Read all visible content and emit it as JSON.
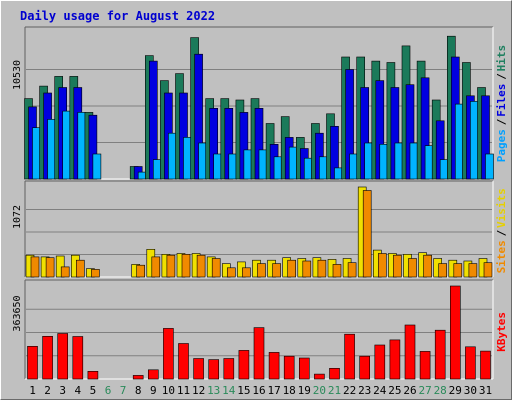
{
  "chart_data": {
    "type": "bar",
    "title": "Daily usage for August 2022",
    "categories": [
      "1",
      "2",
      "3",
      "4",
      "5",
      "6",
      "7",
      "8",
      "9",
      "10",
      "11",
      "12",
      "13",
      "14",
      "15",
      "16",
      "17",
      "18",
      "19",
      "20",
      "21",
      "22",
      "23",
      "24",
      "25",
      "26",
      "27",
      "28",
      "29",
      "30",
      "31"
    ],
    "weekend_days": [
      "6",
      "7",
      "13",
      "14",
      "20",
      "21",
      "27",
      "28"
    ],
    "panels": [
      {
        "id": "hits_files_pages",
        "scale_label": "10530",
        "ylim": [
          0,
          10530
        ],
        "legend": [
          "Pages",
          "/",
          "Files",
          "/",
          "Hits"
        ],
        "series": [
          {
            "name": "Hits",
            "color": "#1b7a5a",
            "values": [
              5800,
              6700,
              7400,
              7400,
              4800,
              0,
              0,
              900,
              8900,
              7100,
              7600,
              10200,
              5800,
              5800,
              5700,
              5800,
              4000,
              4500,
              3000,
              4000,
              4700,
              8800,
              8800,
              8500,
              8400,
              9600,
              8500,
              5700,
              10300,
              8400,
              6600
            ]
          },
          {
            "name": "Files",
            "color": "#0000e0",
            "values": [
              5200,
              6200,
              6600,
              6600,
              4600,
              0,
              0,
              900,
              8500,
              6200,
              6200,
              9000,
              5100,
              5100,
              4800,
              5100,
              2500,
              3000,
              2200,
              3300,
              3800,
              7900,
              6600,
              7100,
              6600,
              6800,
              7300,
              4200,
              8800,
              6000,
              6000
            ]
          },
          {
            "name": "Pages",
            "color": "#00b4ff",
            "values": [
              3700,
              4300,
              4900,
              4800,
              1800,
              0,
              0,
              500,
              1400,
              3300,
              3000,
              2600,
              1800,
              1800,
              2100,
              2100,
              1600,
              2300,
              1500,
              1600,
              800,
              1800,
              2600,
              2500,
              2600,
              2600,
              2400,
              1400,
              5400,
              5600,
              1800
            ]
          }
        ]
      },
      {
        "id": "visits_sites",
        "scale_label": "1072",
        "ylim": [
          0,
          1072
        ],
        "legend": [
          "Sites",
          "/",
          "Visits"
        ],
        "series": [
          {
            "name": "Visits",
            "color": "#f0e000",
            "values": [
              260,
              240,
              250,
              260,
              100,
              0,
              0,
              150,
              330,
              270,
              280,
              280,
              240,
              160,
              180,
              200,
              200,
              230,
              220,
              230,
              210,
              220,
              1072,
              320,
              280,
              270,
              290,
              220,
              200,
              190,
              220
            ]
          },
          {
            "name": "Sites",
            "color": "#f08a00",
            "values": [
              240,
              230,
              120,
              200,
              90,
              0,
              0,
              140,
              240,
              260,
              270,
              260,
              220,
              110,
              110,
              160,
              160,
              200,
              190,
              200,
              150,
              170,
              1030,
              280,
              260,
              220,
              260,
              160,
              160,
              160,
              170
            ]
          }
        ]
      },
      {
        "id": "kbytes",
        "scale_label": "363650",
        "ylim": [
          0,
          363650
        ],
        "legend": [
          "KBytes"
        ],
        "series": [
          {
            "name": "KBytes",
            "color": "#ff0000",
            "values": [
              128000,
              167000,
              178000,
              166000,
              30000,
              0,
              0,
              14000,
              36000,
              198000,
              139000,
              80000,
              76000,
              80000,
              112000,
              201000,
              104000,
              89000,
              82000,
              19000,
              42000,
              175000,
              89000,
              133000,
              153000,
              211000,
              108000,
              191000,
              363650,
              126000,
              109000
            ]
          }
        ]
      }
    ]
  }
}
